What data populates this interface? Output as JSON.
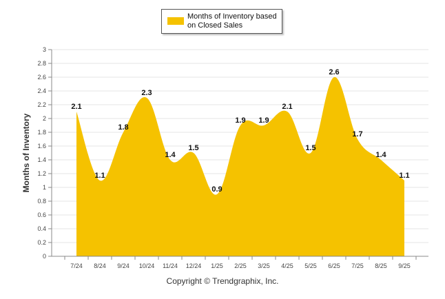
{
  "chart_data": {
    "type": "area",
    "title": "",
    "xlabel": "",
    "ylabel": "Months of Inventory",
    "categories": [
      "7/24",
      "8/24",
      "9/24",
      "10/24",
      "11/24",
      "12/24",
      "1/25",
      "2/25",
      "3/25",
      "4/25",
      "5/25",
      "6/25",
      "7/25",
      "8/25",
      "9/25"
    ],
    "series": [
      {
        "name": "Months of Inventory based on Closed Sales",
        "values": [
          2.1,
          1.1,
          1.8,
          2.3,
          1.4,
          1.5,
          0.9,
          1.9,
          1.9,
          2.1,
          1.5,
          2.6,
          1.7,
          1.4,
          1.1
        ],
        "color": "#f5c200"
      }
    ],
    "ylim": [
      0,
      3
    ],
    "yticks": [
      "0",
      "0.2",
      "0.4",
      "0.6",
      "0.8",
      "1",
      "1.2",
      "1.4",
      "1.6",
      "1.8",
      "2",
      "2.2",
      "2.4",
      "2.6",
      "2.8",
      "3"
    ],
    "grid": true,
    "legend": "top-center"
  },
  "legend": {
    "label": "Months of Inventory based on Closed Sales"
  },
  "footer": {
    "copyright": "Copyright © Trendgraphix, Inc."
  }
}
